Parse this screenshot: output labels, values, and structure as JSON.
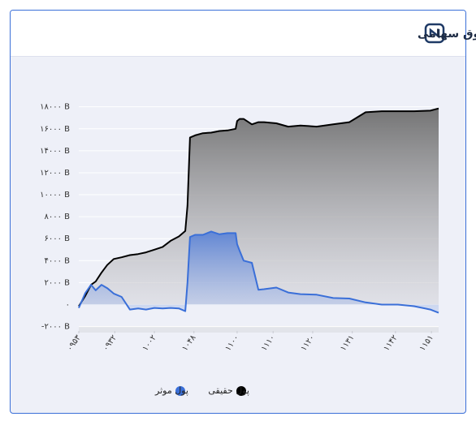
{
  "chart_data": {
    "type": "area-line",
    "title": "سهام،حق تقدم و صندوق سهامی",
    "x": [
      0,
      1.8,
      3.4,
      4.7,
      6.3,
      7.9,
      9.7,
      11.9,
      14.2,
      16.5,
      18.7,
      21,
      23.3,
      25.5,
      27.8,
      29.6,
      30.2,
      30.9,
      32.3,
      34.5,
      36.8,
      39.1,
      41.3,
      43.6,
      44,
      44.7,
      45.8,
      48.1,
      49.9,
      51.5,
      54.9,
      58.2,
      61.6,
      66.1,
      70.7,
      75.2,
      79.7,
      84.2,
      88.7,
      93.2,
      97.7,
      100
    ],
    "series": [
      {
        "name": "پول حقیقی",
        "color": "#000000",
        "values": [
          -150,
          800,
          1800,
          2100,
          2900,
          3600,
          4150,
          4300,
          4500,
          4600,
          4750,
          5000,
          5250,
          5800,
          6200,
          6700,
          9000,
          15200,
          15400,
          15600,
          15650,
          15800,
          15850,
          16000,
          16700,
          16900,
          16900,
          16400,
          16600,
          16600,
          16500,
          16200,
          16300,
          16200,
          16400,
          16600,
          17500,
          17600,
          17600,
          17600,
          17650,
          17850
        ]
      },
      {
        "name": "پول موثر",
        "color": "#3a6fd8",
        "values": [
          -300,
          1050,
          1800,
          1300,
          1800,
          1500,
          1000,
          700,
          -450,
          -350,
          -450,
          -300,
          -350,
          -300,
          -350,
          -600,
          2000,
          6150,
          6350,
          6350,
          6650,
          6400,
          6500,
          6500,
          5500,
          4900,
          4000,
          3800,
          1350,
          1400,
          1550,
          1100,
          950,
          900,
          600,
          550,
          200,
          0,
          0,
          -150,
          -450,
          -750
        ]
      }
    ],
    "xlim": [
      0,
      100
    ],
    "xticks": [
      {
        "value": 0,
        "label": "۰۹۵۳"
      },
      {
        "value": 10,
        "label": "۰۹۳۲"
      },
      {
        "value": 21,
        "label": "۱۰۰۲"
      },
      {
        "value": 32,
        "label": "۱۰۴۸"
      },
      {
        "value": 44,
        "label": "۱۱۰۰"
      },
      {
        "value": 54,
        "label": "۱۱۱۰"
      },
      {
        "value": 65,
        "label": "۱۱۲۰"
      },
      {
        "value": 76,
        "label": "۱۱۳۱"
      },
      {
        "value": 88,
        "label": "۱۱۴۲"
      },
      {
        "value": 98,
        "label": "۱۱۵۱"
      }
    ],
    "ylim": [
      -2400,
      19600
    ],
    "yticks": [
      {
        "value": -2000,
        "label": "-۲۰۰۰ B"
      },
      {
        "value": 0,
        "label": "۰"
      },
      {
        "value": 2000,
        "label": "۲۰۰۰ B"
      },
      {
        "value": 4000,
        "label": "۴۰۰۰ B"
      },
      {
        "value": 6000,
        "label": "۶۰۰۰ B"
      },
      {
        "value": 8000,
        "label": "۸۰۰۰ B"
      },
      {
        "value": 10000,
        "label": "۱۰۰۰۰ B"
      },
      {
        "value": 12000,
        "label": "۱۲۰۰۰ B"
      },
      {
        "value": 14000,
        "label": "۱۴۰۰۰ B"
      },
      {
        "value": 16000,
        "label": "۱۶۰۰۰ B"
      },
      {
        "value": 18000,
        "label": "۱۸۰۰۰ B"
      }
    ],
    "grid": true
  }
}
